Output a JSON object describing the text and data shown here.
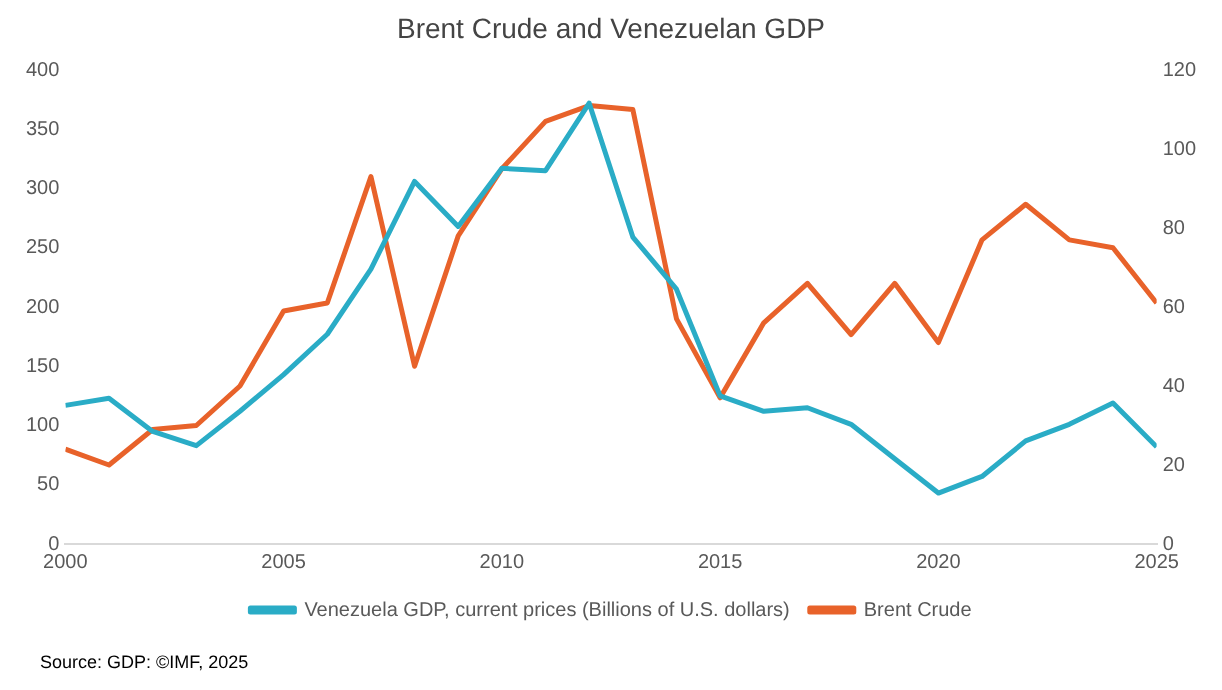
{
  "chart_data": {
    "type": "line",
    "title": "Brent Crude and Venezuelan GDP",
    "x": [
      2000,
      2001,
      2002,
      2003,
      2004,
      2005,
      2006,
      2007,
      2008,
      2009,
      2010,
      2011,
      2012,
      2013,
      2014,
      2015,
      2016,
      2017,
      2018,
      2019,
      2020,
      2021,
      2022,
      2023,
      2024,
      2025
    ],
    "series": [
      {
        "name": "Venezuela GDP, current prices (Billions of U.S. dollars)",
        "color": "#2aacc6",
        "values": [
          117,
          123,
          95,
          83,
          112,
          143,
          177,
          232,
          306,
          268,
          317,
          315,
          372,
          259,
          215,
          125,
          112,
          115,
          101,
          72,
          43,
          57,
          87,
          101,
          119,
          82
        ]
      },
      {
        "name": "Brent Crude",
        "color": "#e8622a",
        "axis": "y2",
        "values": [
          24,
          20,
          29,
          30,
          40,
          59,
          61,
          93,
          45,
          78,
          95,
          107,
          111,
          110,
          57,
          37,
          56,
          66,
          53,
          66,
          51,
          77,
          86,
          77,
          75,
          61
        ]
      }
    ],
    "xlim": [
      2000,
      2025
    ],
    "xticks": [
      2000,
      2005,
      2010,
      2015,
      2020,
      2025
    ],
    "ylim": [
      0,
      400
    ],
    "yticks": [
      0,
      50,
      100,
      150,
      200,
      250,
      300,
      350,
      400
    ],
    "y2lim": [
      0,
      120
    ],
    "y2ticks": [
      0,
      20,
      40,
      60,
      80,
      100,
      120
    ],
    "grid": false,
    "legend": "bottom",
    "marker": "none",
    "line_style": "solid",
    "annotations": [
      "Source: GDP: ©IMF, 2025"
    ]
  }
}
